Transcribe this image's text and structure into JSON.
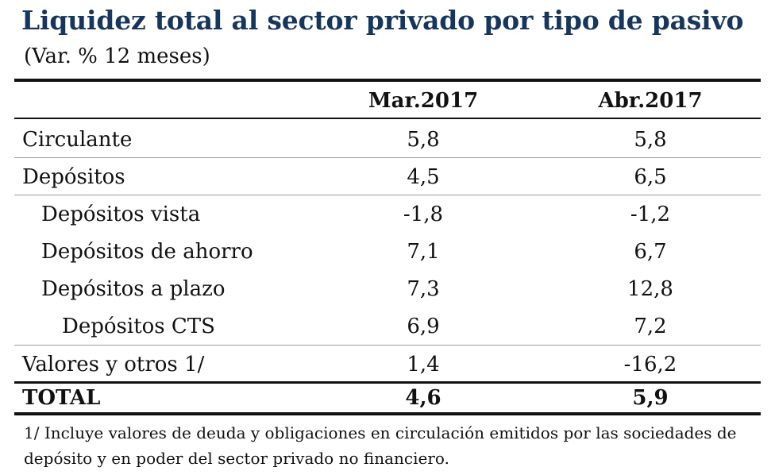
{
  "title": "Liquidez total al sector privado por tipo de pasivo",
  "subtitle": "(Var. % 12 meses)",
  "columns": [
    "Mar.2017",
    "Abr.2017"
  ],
  "rows": [
    {
      "label": "Circulante",
      "values": [
        "5,8",
        "5,8"
      ]
    },
    {
      "label": "Depósitos",
      "values": [
        "4,5",
        "6,5"
      ]
    },
    {
      "label": "Depósitos vista",
      "values": [
        "-1,8",
        "-1,2"
      ]
    },
    {
      "label": "Depósitos de ahorro",
      "values": [
        "7,1",
        "6,7"
      ]
    },
    {
      "label": "Depósitos a plazo",
      "values": [
        "7,3",
        "12,8"
      ]
    },
    {
      "label": "Depósitos CTS",
      "values": [
        "6,9",
        "7,2"
      ]
    },
    {
      "label": "Valores y otros 1/",
      "values": [
        "1,4",
        "-16,2"
      ]
    }
  ],
  "total": {
    "label": "TOTAL",
    "values": [
      "4,6",
      "5,9"
    ]
  },
  "footnote": "1/ Incluye valores de deuda y obligaciones en circulación emitidos por las sociedades de depósito y en poder del sector privado no financiero.",
  "colors": {
    "title": "#17365d",
    "text": "#111111",
    "rule": "#111111"
  }
}
